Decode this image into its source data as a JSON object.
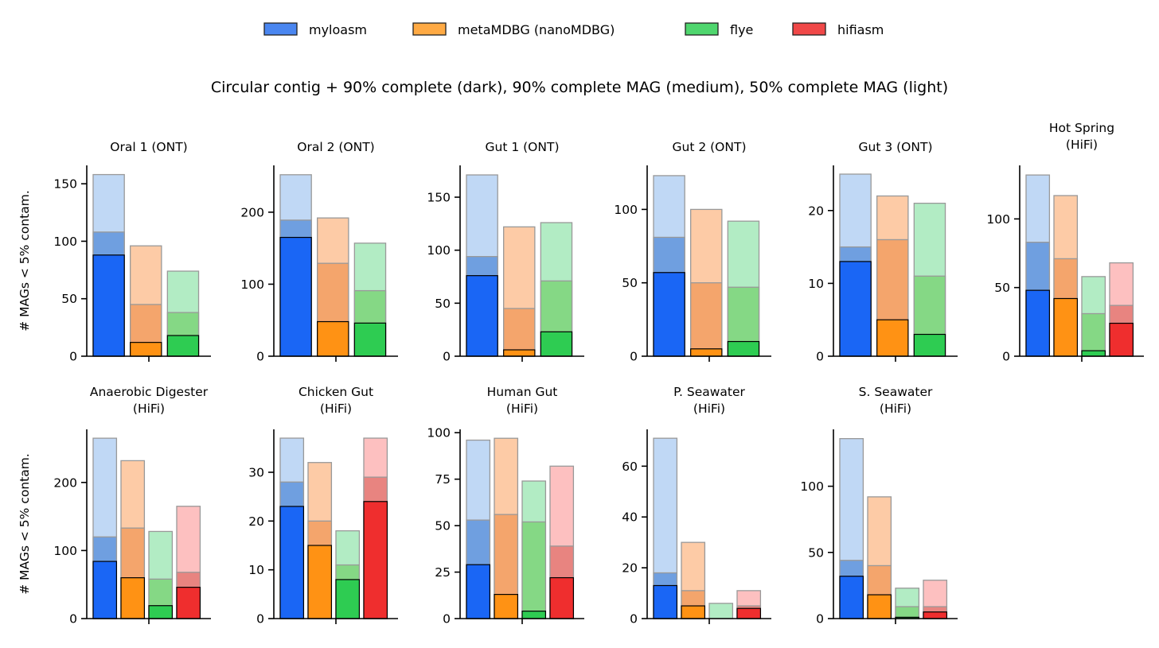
{
  "chart_data": {
    "type": "bar",
    "title": "Circular contig + 90% complete (dark), 90% complete MAG (medium), 50% complete MAG (light)",
    "ylabel": "# MAGs < 5% contam.",
    "legend": {
      "placement": "top-center",
      "entries": [
        {
          "name": "myloasm",
          "color": "#4a86f0"
        },
        {
          "name": "metaMDBG (nanoMDBG)",
          "color": "#ffaa44"
        },
        {
          "name": "flye",
          "color": "#4fd66e"
        },
        {
          "name": "hifiasm",
          "color": "#f04848"
        }
      ]
    },
    "series_colors": {
      "myloasm": {
        "dark": "#1a66f5",
        "medium": "#6f9fe0",
        "light": "#c0d8f5"
      },
      "metaMDBG (nanoMDBG)": {
        "dark": "#ff9214",
        "medium": "#f4a56c",
        "light": "#fdcba6"
      },
      "flye": {
        "dark": "#2ecc52",
        "medium": "#85d885",
        "light": "#b2ecc4"
      },
      "hifiasm": {
        "dark": "#ef2e2e",
        "medium": "#e88480",
        "light": "#fdc0c0"
      }
    },
    "panels": [
      {
        "title": [
          "Oral 1 (ONT)"
        ],
        "ylim": [
          0,
          166
        ],
        "yticks": [
          0,
          50,
          100,
          150
        ],
        "bars": [
          {
            "tool": "myloasm",
            "light": 158,
            "medium": 108,
            "dark": 88
          },
          {
            "tool": "metaMDBG (nanoMDBG)",
            "light": 96,
            "medium": 45,
            "dark": 12
          },
          {
            "tool": "flye",
            "light": 74,
            "medium": 38,
            "dark": 18
          }
        ]
      },
      {
        "title": [
          "Oral 2 (ONT)"
        ],
        "ylim": [
          0,
          265
        ],
        "yticks": [
          0,
          100,
          200
        ],
        "bars": [
          {
            "tool": "myloasm",
            "light": 252,
            "medium": 189,
            "dark": 165
          },
          {
            "tool": "metaMDBG (nanoMDBG)",
            "light": 192,
            "medium": 129,
            "dark": 48
          },
          {
            "tool": "flye",
            "light": 157,
            "medium": 91,
            "dark": 46
          }
        ]
      },
      {
        "title": [
          "Gut 1 (ONT)"
        ],
        "ylim": [
          0,
          180
        ],
        "yticks": [
          0,
          50,
          100,
          150
        ],
        "bars": [
          {
            "tool": "myloasm",
            "light": 171,
            "medium": 94,
            "dark": 76
          },
          {
            "tool": "metaMDBG (nanoMDBG)",
            "light": 122,
            "medium": 45,
            "dark": 6
          },
          {
            "tool": "flye",
            "light": 126,
            "medium": 71,
            "dark": 23
          }
        ]
      },
      {
        "title": [
          "Gut 2 (ONT)"
        ],
        "ylim": [
          0,
          130
        ],
        "yticks": [
          0,
          50,
          100
        ],
        "bars": [
          {
            "tool": "myloasm",
            "light": 123,
            "medium": 81,
            "dark": 57
          },
          {
            "tool": "metaMDBG (nanoMDBG)",
            "light": 100,
            "medium": 50,
            "dark": 5
          },
          {
            "tool": "flye",
            "light": 92,
            "medium": 47,
            "dark": 10
          }
        ]
      },
      {
        "title": [
          "Gut 3 (ONT)"
        ],
        "ylim": [
          0,
          26.2
        ],
        "yticks": [
          0,
          10,
          20
        ],
        "bars": [
          {
            "tool": "myloasm",
            "light": 25,
            "medium": 15,
            "dark": 13
          },
          {
            "tool": "metaMDBG (nanoMDBG)",
            "light": 22,
            "medium": 16,
            "dark": 5
          },
          {
            "tool": "flye",
            "light": 21,
            "medium": 11,
            "dark": 3
          }
        ]
      },
      {
        "title": [
          "Hot Spring",
          "(HiFi)"
        ],
        "ylim": [
          0,
          139
        ],
        "yticks": [
          0,
          50,
          100
        ],
        "bars": [
          {
            "tool": "myloasm",
            "light": 132,
            "medium": 83,
            "dark": 48
          },
          {
            "tool": "metaMDBG (nanoMDBG)",
            "light": 117,
            "medium": 71,
            "dark": 42
          },
          {
            "tool": "flye",
            "light": 58,
            "medium": 31,
            "dark": 4
          },
          {
            "tool": "hifiasm",
            "light": 68,
            "medium": 37,
            "dark": 24
          }
        ]
      },
      {
        "title": [
          "Anaerobic Digester",
          "(HiFi)"
        ],
        "ylim": [
          0,
          278
        ],
        "yticks": [
          0,
          100,
          200
        ],
        "bars": [
          {
            "tool": "myloasm",
            "light": 265,
            "medium": 120,
            "dark": 84
          },
          {
            "tool": "metaMDBG (nanoMDBG)",
            "light": 232,
            "medium": 133,
            "dark": 60
          },
          {
            "tool": "flye",
            "light": 128,
            "medium": 58,
            "dark": 19
          },
          {
            "tool": "hifiasm",
            "light": 165,
            "medium": 68,
            "dark": 46
          }
        ]
      },
      {
        "title": [
          "Chicken Gut",
          "(HiFi)"
        ],
        "ylim": [
          0,
          38.8
        ],
        "yticks": [
          0,
          10,
          20,
          30
        ],
        "bars": [
          {
            "tool": "myloasm",
            "light": 37,
            "medium": 28,
            "dark": 23
          },
          {
            "tool": "metaMDBG (nanoMDBG)",
            "light": 32,
            "medium": 20,
            "dark": 15
          },
          {
            "tool": "flye",
            "light": 18,
            "medium": 11,
            "dark": 8
          },
          {
            "tool": "hifiasm",
            "light": 37,
            "medium": 29,
            "dark": 24
          }
        ]
      },
      {
        "title": [
          "Human Gut",
          "(HiFi)"
        ],
        "ylim": [
          0,
          101.8
        ],
        "yticks": [
          0,
          25,
          50,
          75,
          100
        ],
        "bars": [
          {
            "tool": "myloasm",
            "light": 96,
            "medium": 53,
            "dark": 29
          },
          {
            "tool": "metaMDBG (nanoMDBG)",
            "light": 97,
            "medium": 56,
            "dark": 13
          },
          {
            "tool": "flye",
            "light": 74,
            "medium": 52,
            "dark": 4
          },
          {
            "tool": "hifiasm",
            "light": 82,
            "medium": 39,
            "dark": 22
          }
        ]
      },
      {
        "title": [
          "P. Seawater",
          "(HiFi)"
        ],
        "ylim": [
          0,
          74.5
        ],
        "yticks": [
          0,
          20,
          40,
          60
        ],
        "bars": [
          {
            "tool": "myloasm",
            "light": 71,
            "medium": 18,
            "dark": 13
          },
          {
            "tool": "metaMDBG (nanoMDBG)",
            "light": 30,
            "medium": 11,
            "dark": 5
          },
          {
            "tool": "flye",
            "light": 6,
            "medium": 0,
            "dark": 0
          },
          {
            "tool": "hifiasm",
            "light": 11,
            "medium": 5,
            "dark": 4
          }
        ]
      },
      {
        "title": [
          "S. Seawater",
          "(HiFi)"
        ],
        "ylim": [
          0,
          143
        ],
        "yticks": [
          0,
          50,
          100
        ],
        "bars": [
          {
            "tool": "myloasm",
            "light": 136,
            "medium": 44,
            "dark": 32
          },
          {
            "tool": "metaMDBG (nanoMDBG)",
            "light": 92,
            "medium": 40,
            "dark": 18
          },
          {
            "tool": "flye",
            "light": 23,
            "medium": 9,
            "dark": 1
          },
          {
            "tool": "hifiasm",
            "light": 29,
            "medium": 9,
            "dark": 5
          }
        ]
      }
    ]
  }
}
